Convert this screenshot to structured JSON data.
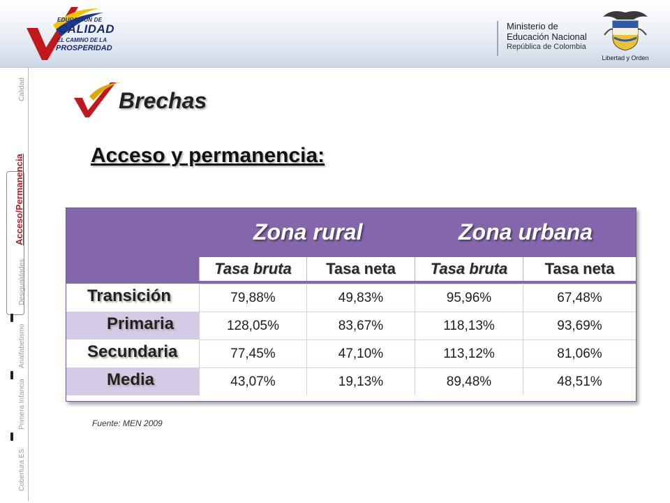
{
  "header": {
    "logo": {
      "line1": "EDUCACIÓN DE",
      "line2": "CALIDAD",
      "line3": "EL CAMINO DE LA",
      "line4": "PROSPERIDAD"
    },
    "ministry": {
      "line1": "Ministerio de",
      "line2": "Educación Nacional",
      "line3": "República de Colombia"
    },
    "motto": "Libertad y Orden"
  },
  "side_nav": {
    "items": [
      {
        "label": "Calidad",
        "active": false
      },
      {
        "label": "Acceso/Permanencia",
        "active": true
      },
      {
        "label": "Desigualdades",
        "active": false
      },
      {
        "label": "Analfabetismo",
        "active": false
      },
      {
        "label": "Primera Infancia",
        "active": false
      },
      {
        "label": "Cobertura ES",
        "active": false
      }
    ]
  },
  "section_title": "Brechas",
  "subtitle": "Acceso y permanencia:",
  "table": {
    "zones": [
      "Zona rural",
      "Zona urbana"
    ],
    "columns": [
      "Tasa bruta",
      "Tasa neta",
      "Tasa bruta",
      "Tasa neta"
    ],
    "rows": [
      {
        "label": "Transición",
        "values": [
          "79,88%",
          "49,83%",
          "95,96%",
          "67,48%"
        ]
      },
      {
        "label": "Primaria",
        "values": [
          "128,05%",
          "83,67%",
          "118,13%",
          "93,69%"
        ]
      },
      {
        "label": "Secundaria",
        "values": [
          "77,45%",
          "47,10%",
          "113,12%",
          "81,06%"
        ]
      },
      {
        "label": "Media",
        "values": [
          "43,07%",
          "19,13%",
          "89,48%",
          "48,51%"
        ]
      }
    ]
  },
  "source": "Fuente: MEN 2009",
  "colors": {
    "table_header": "#8466ad",
    "row_alt": "#d6cbe6",
    "accent_red": "#c0181d",
    "brand_blue": "#1a2a6c"
  }
}
